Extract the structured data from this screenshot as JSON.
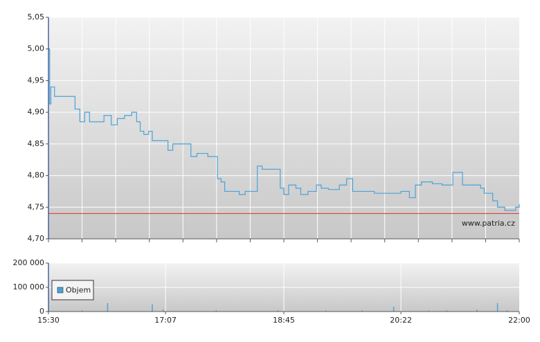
{
  "chart_data": [
    {
      "type": "line",
      "xlim": [
        "15:30",
        "22:00"
      ],
      "ylim": [
        4.7,
        5.05
      ],
      "yticks": [
        {
          "value": 4.7,
          "label": "4,70"
        },
        {
          "value": 4.75,
          "label": "4,75"
        },
        {
          "value": 4.8,
          "label": "4,80"
        },
        {
          "value": 4.85,
          "label": "4,85"
        },
        {
          "value": 4.9,
          "label": "4,90"
        },
        {
          "value": 4.95,
          "label": "4,95"
        },
        {
          "value": 5.0,
          "label": "5,00"
        },
        {
          "value": 5.05,
          "label": "5,05"
        }
      ],
      "grid": true,
      "x": [
        "15:30",
        "15:31",
        "15:32",
        "15:35",
        "15:42",
        "15:48",
        "15:52",
        "15:56",
        "16:00",
        "16:04",
        "16:10",
        "16:16",
        "16:22",
        "16:27",
        "16:33",
        "16:39",
        "16:43",
        "16:46",
        "16:49",
        "16:53",
        "16:56",
        "17:04",
        "17:09",
        "17:13",
        "17:20",
        "17:28",
        "17:33",
        "17:42",
        "17:48",
        "17:50",
        "17:53",
        "17:56",
        "18:02",
        "18:08",
        "18:13",
        "18:19",
        "18:23",
        "18:27",
        "18:33",
        "18:39",
        "18:42",
        "18:45",
        "18:49",
        "18:55",
        "18:59",
        "19:05",
        "19:12",
        "19:16",
        "19:22",
        "19:31",
        "19:37",
        "19:42",
        "19:48",
        "20:00",
        "20:11",
        "20:22",
        "20:29",
        "20:34",
        "20:39",
        "20:48",
        "20:56",
        "21:05",
        "21:13",
        "21:20",
        "21:28",
        "21:31",
        "21:38",
        "21:42",
        "21:48",
        "21:54",
        "21:57",
        "22:00"
      ],
      "series": [
        {
          "color": "#4aa3d8",
          "values": [
            5.0,
            4.913,
            4.94,
            4.925,
            4.925,
            4.925,
            4.905,
            4.885,
            4.9,
            4.885,
            4.885,
            4.895,
            4.88,
            4.89,
            4.895,
            4.9,
            4.885,
            4.87,
            4.865,
            4.87,
            4.855,
            4.855,
            4.84,
            4.85,
            4.85,
            4.83,
            4.835,
            4.83,
            4.83,
            4.795,
            4.79,
            4.775,
            4.775,
            4.77,
            4.775,
            4.775,
            4.815,
            4.81,
            4.81,
            4.81,
            4.78,
            4.77,
            4.785,
            4.78,
            4.77,
            4.775,
            4.785,
            4.78,
            4.778,
            4.785,
            4.795,
            4.775,
            4.775,
            4.772,
            4.772,
            4.775,
            4.765,
            4.785,
            4.79,
            4.787,
            4.785,
            4.805,
            4.785,
            4.785,
            4.78,
            4.772,
            4.76,
            4.75,
            4.745,
            4.745,
            4.75,
            4.755
          ]
        }
      ],
      "reference_line": {
        "value": 4.74,
        "color": "#e04040"
      },
      "annotation": "www.patria.cz"
    },
    {
      "type": "bar",
      "xlim": [
        "15:30",
        "22:00"
      ],
      "xticks": [
        "15:30",
        "17:07",
        "18:45",
        "20:22",
        "22:00"
      ],
      "ylim": [
        0,
        200000
      ],
      "yticks": [
        0,
        {
          "value": 100000,
          "label": "100 000"
        },
        {
          "value": 200000,
          "label": "200 000"
        }
      ],
      "grid": true,
      "legend": "upper left",
      "x": [
        "15:58",
        "16:19",
        "16:56",
        "17:05",
        "17:49",
        "18:40",
        "19:20",
        "19:50",
        "20:16",
        "20:45",
        "21:00",
        "21:25",
        "21:42",
        "21:50"
      ],
      "series": [
        {
          "name": "Objem",
          "color": "#4aa3d8",
          "values": [
            5000,
            35000,
            30000,
            8000,
            5000,
            5000,
            4000,
            5000,
            20000,
            4000,
            5000,
            8000,
            35000,
            5000
          ]
        }
      ]
    }
  ]
}
